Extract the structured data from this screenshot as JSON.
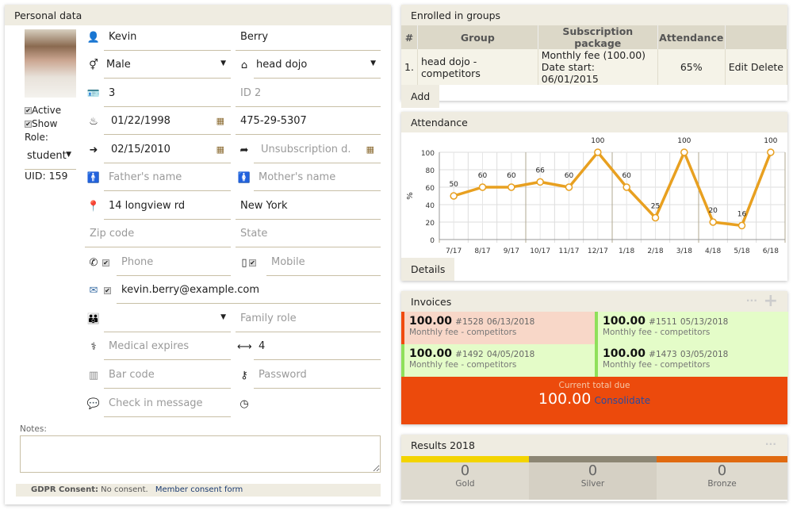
{
  "personal": {
    "title": "Personal data",
    "active_label": "Active",
    "show_label": "Show",
    "role_label": "Role:",
    "role": "student",
    "uid": "UID: 159",
    "first_name": "Kevin",
    "last_name": "Berry",
    "gender": "Male",
    "dojo": "head dojo",
    "id1": "3",
    "id2_placeholder": "ID 2",
    "birth_date": "01/22/1998",
    "ssn": "475-29-5307",
    "subscription_date": "02/15/2010",
    "unsubscription_placeholder": "Unsubscription d.",
    "father_placeholder": "Father's name",
    "mother_placeholder": "Mother's name",
    "address": "14 longview rd",
    "city": "New York",
    "zip_placeholder": "Zip code",
    "state_placeholder": "State",
    "phone_placeholder": "Phone",
    "mobile_placeholder": "Mobile",
    "email": "kevin.berry@example.com",
    "family_role_placeholder": "Family role",
    "medical_placeholder": "Medical expires",
    "size": "4",
    "barcode_placeholder": "Bar code",
    "password_placeholder": "Password",
    "checkin_placeholder": "Check in message",
    "notes_label": "Notes:",
    "gdpr_label": "GDPR Consent:",
    "gdpr_value": "No consent.",
    "consent_form_link": "Member consent form"
  },
  "groups": {
    "title": "Enrolled in groups",
    "headers": [
      "#",
      "Group",
      "Subscription package",
      "Attendance",
      ""
    ],
    "rows": [
      {
        "num": "1.",
        "group": "head dojo - competitors",
        "package": "Monthly fee (100.00)",
        "date_start": "Date start: 06/01/2015",
        "attendance": "65%",
        "edit": "Edit",
        "delete": "Delete"
      }
    ],
    "add_label": "Add"
  },
  "attendance": {
    "title": "Attendance",
    "details_label": "Details"
  },
  "chart_data": {
    "type": "line",
    "title": "",
    "xlabel": "",
    "ylabel": "%",
    "ylim": [
      0,
      100
    ],
    "yticks": [
      "0",
      "20",
      "40",
      "60",
      "80",
      "100"
    ],
    "categories": [
      "7/17",
      "8/17",
      "9/17",
      "10/17",
      "11/17",
      "12/17",
      "1/18",
      "2/18",
      "3/18",
      "4/18",
      "5/18",
      "6/18"
    ],
    "values": [
      50,
      60,
      60,
      66,
      60,
      100,
      60,
      25,
      100,
      20,
      16,
      100
    ],
    "color": "#e8a020",
    "grid": true
  },
  "invoices": {
    "title": "Invoices",
    "items": [
      {
        "amount": "100.00",
        "number": "#1528",
        "date": "06/13/2018",
        "desc": "Monthly fee - competitors",
        "status": "unpaid"
      },
      {
        "amount": "100.00",
        "number": "#1511",
        "date": "05/13/2018",
        "desc": "Monthly fee - competitors",
        "status": "paid"
      },
      {
        "amount": "100.00",
        "number": "#1492",
        "date": "04/05/2018",
        "desc": "Monthly fee - competitors",
        "status": "paid"
      },
      {
        "amount": "100.00",
        "number": "#1473",
        "date": "03/05/2018",
        "desc": "Monthly fee - competitors",
        "status": "paid"
      }
    ],
    "total_label": "Current total due",
    "total": "100.00",
    "consolidate_label": "Consolidate"
  },
  "results": {
    "title": "Results 2018",
    "items": [
      {
        "label": "Gold",
        "count": "0",
        "color": "#f3d400"
      },
      {
        "label": "Silver",
        "count": "0",
        "color": "#8c8674"
      },
      {
        "label": "Bronze",
        "count": "0",
        "color": "#e06a10"
      }
    ]
  }
}
